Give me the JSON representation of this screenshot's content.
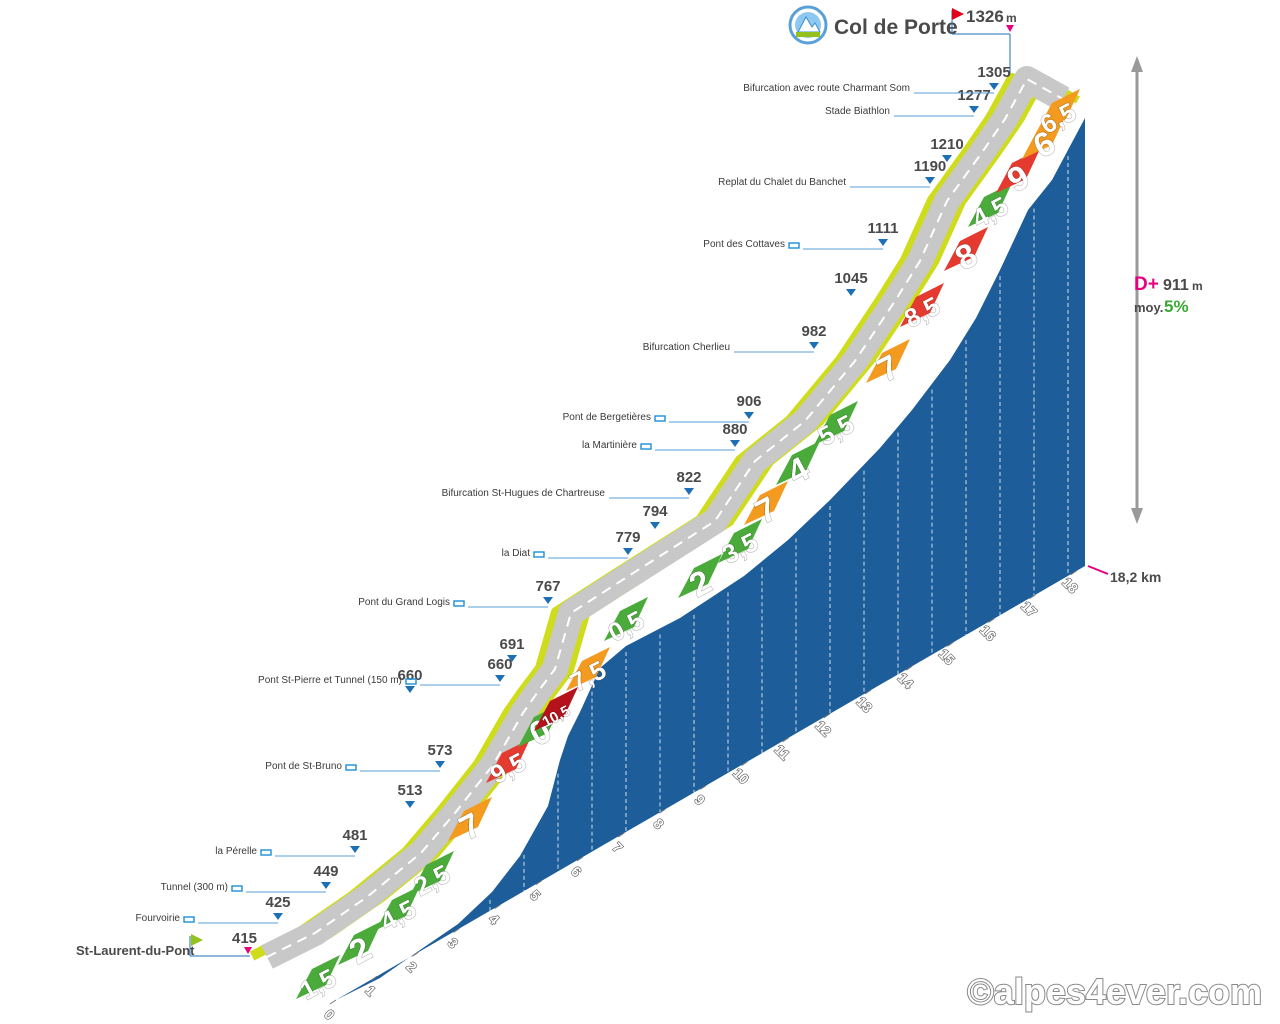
{
  "chart_data": {
    "type": "area",
    "title": "Col de Porte",
    "summit_elevation": "1326",
    "summit_unit": "m",
    "start_name": "St-Laurent-du-Pont",
    "start_elevation": "415",
    "total_distance_label": "18,2 km",
    "elevation_gain_label": "D+",
    "elevation_gain_value": "911",
    "elevation_gain_unit": "m",
    "average_label": "moy.",
    "average_value": "5%",
    "watermark": "©alpes4ever.com",
    "km_ticks": [
      "0",
      "1",
      "2",
      "3",
      "4",
      "5",
      "6",
      "7",
      "8",
      "9",
      "10",
      "11",
      "12",
      "13",
      "14",
      "15",
      "16",
      "17",
      "18"
    ],
    "segments": [
      {
        "label": "1,5",
        "grade": 1.5,
        "color": "#4aab3b"
      },
      {
        "label": "2",
        "grade": 2,
        "color": "#4aab3b"
      },
      {
        "label": "4,5",
        "grade": 4.5,
        "color": "#4aab3b"
      },
      {
        "label": "2,5",
        "grade": 2.5,
        "color": "#4aab3b"
      },
      {
        "label": "7",
        "grade": 7,
        "color": "#f39a1f"
      },
      {
        "label": "9,5",
        "grade": 9.5,
        "color": "#e53a2f"
      },
      {
        "label": "0",
        "grade": 0,
        "color": "#4aab3b"
      },
      {
        "label": "10,5",
        "grade": 10.5,
        "color": "#b5121b"
      },
      {
        "label": "7,5",
        "grade": 7.5,
        "color": "#f39a1f"
      },
      {
        "label": "0,5",
        "grade": 0.5,
        "color": "#4aab3b"
      },
      {
        "label": "2",
        "grade": 2,
        "color": "#4aab3b"
      },
      {
        "label": "3,5",
        "grade": 3.5,
        "color": "#4aab3b"
      },
      {
        "label": "7",
        "grade": 7,
        "color": "#f39a1f"
      },
      {
        "label": "4",
        "grade": 4,
        "color": "#4aab3b"
      },
      {
        "label": "5,5",
        "grade": 5.5,
        "color": "#4aab3b"
      },
      {
        "label": "7",
        "grade": 7,
        "color": "#f39a1f"
      },
      {
        "label": "8,5",
        "grade": 8.5,
        "color": "#e53a2f"
      },
      {
        "label": "8",
        "grade": 8,
        "color": "#e53a2f"
      },
      {
        "label": "4,5",
        "grade": 4.5,
        "color": "#4aab3b"
      },
      {
        "label": "9",
        "grade": 9,
        "color": "#e53a2f"
      },
      {
        "label": "6",
        "grade": 6,
        "color": "#f39a1f"
      },
      {
        "label": "6,5",
        "grade": 6.5,
        "color": "#f39a1f"
      }
    ],
    "waypoints": [
      {
        "elevation": "415",
        "name": "St-Laurent-du-Pont",
        "icon": ""
      },
      {
        "elevation": "425",
        "name": "Fourvoirie",
        "icon": "village-icon"
      },
      {
        "elevation": "449",
        "name": "Tunnel (300 m)",
        "icon": "tunnel-icon"
      },
      {
        "elevation": "481",
        "name": "la Pérelle",
        "icon": "village-icon"
      },
      {
        "elevation": "513",
        "name": "",
        "icon": ""
      },
      {
        "elevation": "573",
        "name": "Pont de St-Bruno",
        "icon": "bridge-icon"
      },
      {
        "elevation": "660",
        "name": "",
        "icon": ""
      },
      {
        "elevation": "660",
        "name": "Pont St-Pierre et Tunnel (150 m)",
        "icon": "bridge-tunnel-icon"
      },
      {
        "elevation": "691",
        "name": "",
        "icon": ""
      },
      {
        "elevation": "767",
        "name": "Pont du Grand Logis",
        "icon": "bridge-icon"
      },
      {
        "elevation": "779",
        "name": "la Diat",
        "icon": "village-icon"
      },
      {
        "elevation": "794",
        "name": "",
        "icon": ""
      },
      {
        "elevation": "822",
        "name": "Bifurcation St-Hugues de Chartreuse",
        "icon": ""
      },
      {
        "elevation": "880",
        "name": "la Martinière",
        "icon": "village-icon"
      },
      {
        "elevation": "906",
        "name": "Pont de Bergetières",
        "icon": "bridge-icon"
      },
      {
        "elevation": "982",
        "name": "Bifurcation Cherlieu",
        "icon": ""
      },
      {
        "elevation": "1045",
        "name": "",
        "icon": ""
      },
      {
        "elevation": "1111",
        "name": "Pont des Cottaves",
        "icon": "bridge-icon"
      },
      {
        "elevation": "1190",
        "name": "Replat du Chalet du Banchet",
        "icon": ""
      },
      {
        "elevation": "1210",
        "name": "",
        "icon": ""
      },
      {
        "elevation": "1277",
        "name": "Stade Biathlon",
        "icon": ""
      },
      {
        "elevation": "1305",
        "name": "Bifurcation avec route Charmant Som",
        "icon": ""
      }
    ]
  },
  "colors": {
    "wall": "#1c5d9a",
    "road": "#c8c8c8",
    "road_edge": "#cfdc1c",
    "arrow": "#1c6fb5",
    "pink": "#e6007e",
    "green_text": "#3aaa35",
    "flag_red": "#e2001a",
    "flag_green": "#95c11f"
  }
}
